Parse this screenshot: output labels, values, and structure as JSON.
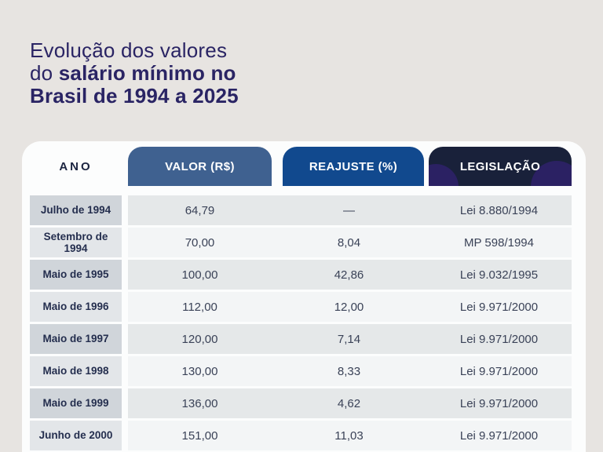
{
  "title": {
    "line1": "Evolução dos valores",
    "line2_regular": "do ",
    "line2_bold": "salário mínimo no",
    "line3_bold": "Brasil de 1994 a 2025"
  },
  "table": {
    "headers": [
      "ANO",
      "VALOR (R$)",
      "REAJUSTE (%)",
      "LEGISLAÇÃO"
    ],
    "rows": [
      {
        "ano": "Julho de 1994",
        "valor": "64,79",
        "reajuste": "—",
        "legislacao": "Lei 8.880/1994"
      },
      {
        "ano": "Setembro de 1994",
        "valor": "70,00",
        "reajuste": "8,04",
        "legislacao": "MP 598/1994"
      },
      {
        "ano": "Maio de 1995",
        "valor": "100,00",
        "reajuste": "42,86",
        "legislacao": "Lei 9.032/1995"
      },
      {
        "ano": "Maio de 1996",
        "valor": "112,00",
        "reajuste": "12,00",
        "legislacao": "Lei 9.971/2000"
      },
      {
        "ano": "Maio de 1997",
        "valor": "120,00",
        "reajuste": "7,14",
        "legislacao": "Lei 9.971/2000"
      },
      {
        "ano": "Maio de 1998",
        "valor": "130,00",
        "reajuste": "8,33",
        "legislacao": "Lei 9.971/2000"
      },
      {
        "ano": "Maio de 1999",
        "valor": "136,00",
        "reajuste": "4,62",
        "legislacao": "Lei 9.971/2000"
      },
      {
        "ano": "Junho de 2000",
        "valor": "151,00",
        "reajuste": "11,03",
        "legislacao": "Lei 9.971/2000"
      }
    ]
  },
  "colors": {
    "page_background": "#E7E4E1",
    "card_background": "#FCFDFD",
    "title_text": "#2A2464",
    "tab_valor": "#3F6190",
    "tab_reajuste": "#11498E",
    "tab_legislacao": "#19213A",
    "tab_decor_circle": "#2B2163",
    "row_odd_ano": "#D0D5DA",
    "row_odd_data": "#E5E8E9",
    "row_even_ano": "#E3E6E9",
    "row_even_data": "#F3F5F6",
    "body_text": "#3A4257",
    "ano_text": "#242E4E"
  },
  "chart_data": {
    "type": "table",
    "title": "Evolução dos valores do salário mínimo no Brasil de 1994 a 2025",
    "columns": [
      "ANO",
      "VALOR (R$)",
      "REAJUSTE (%)",
      "LEGISLAÇÃO"
    ],
    "rows": [
      [
        "Julho de 1994",
        "64,79",
        "—",
        "Lei 8.880/1994"
      ],
      [
        "Setembro de 1994",
        "70,00",
        "8,04",
        "MP 598/1994"
      ],
      [
        "Maio de 1995",
        "100,00",
        "42,86",
        "Lei 9.032/1995"
      ],
      [
        "Maio de 1996",
        "112,00",
        "12,00",
        "Lei 9.971/2000"
      ],
      [
        "Maio de 1997",
        "120,00",
        "7,14",
        "Lei 9.971/2000"
      ],
      [
        "Maio de 1998",
        "130,00",
        "8,33",
        "Lei 9.971/2000"
      ],
      [
        "Maio de 1999",
        "136,00",
        "4,62",
        "Lei 9.971/2000"
      ],
      [
        "Junho de 2000",
        "151,00",
        "11,03",
        "Lei 9.971/2000"
      ]
    ]
  }
}
